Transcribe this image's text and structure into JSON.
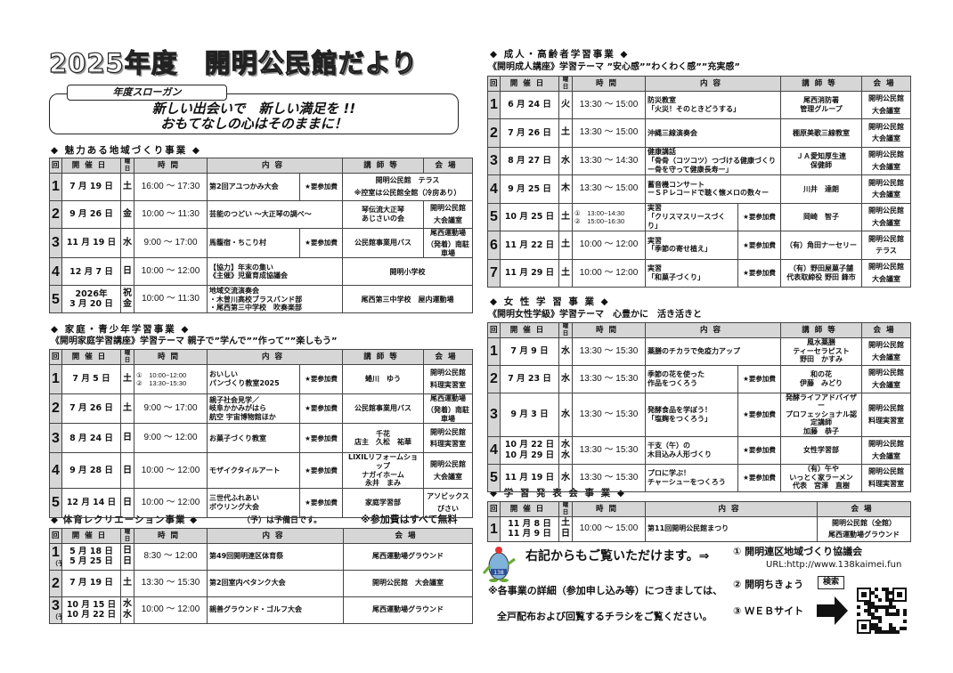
{
  "header": {
    "title": "2025年度　開明公民館だより",
    "slogan_label": "年度スローガン",
    "slogan_lines": [
      "新しい出会いで　新しい満足を !!",
      "おもてなしの心はそのままに！"
    ]
  },
  "headers": {
    "no": "回",
    "date": "開催日",
    "day": "曜日",
    "time": "時間",
    "content": "内容",
    "lecturer": "講師等",
    "venue": "会場"
  },
  "fee_label": "★要参加費",
  "sections": {
    "miryoku": {
      "title": "◆ 魅力ある地域づくり事業 ◆",
      "rows": [
        {
          "no": "1",
          "date": "7 月 19 日",
          "day": "土",
          "time": "16:00 ～ 17:30",
          "content": "第2回アユつかみ大会",
          "fee": "★要参加費",
          "venue": [
            "開明公民館　テラス",
            "※控室は公民館全館（冷房あり）"
          ]
        },
        {
          "no": "2",
          "date": "9 月 26 日",
          "day": "金",
          "time": "10:00 ～ 11:30",
          "content": "芸能のつどい ～大正琴の調べ～",
          "lecturer": [
            "琴伝流大正琴",
            "あじさいの会"
          ],
          "venue": [
            "開明公民館",
            "大会議室"
          ]
        },
        {
          "no": "3",
          "date": "11 月 19 日",
          "day": "水",
          "time": "9:00 ～ 17:00",
          "content": "馬籠宿・ちこり村",
          "fee": "★要参加費",
          "lecturer": "公民館事業用バス",
          "venue": [
            "尾西運動場",
            "（発着）南駐車場"
          ]
        },
        {
          "no": "4",
          "date": "12 月 7 日",
          "day": "日",
          "time": "10:00 ～ 12:00",
          "content": [
            "【協力】年末の集い",
            "《主催》児童育成協議会"
          ],
          "venue": "開明小学校"
        },
        {
          "no": "5",
          "date": [
            "2026年",
            "3 月 20 日"
          ],
          "day": [
            "祝",
            "金"
          ],
          "time": "10:00 ～ 11:30",
          "content": [
            "地域交流演奏会",
            "・木曽川高校ブラスバンド部",
            "・尾西第三中学校　吹奏楽部"
          ],
          "venue": "尾西第三中学校　屋内運動場"
        }
      ]
    },
    "katei": {
      "title": "◆ 家庭・青少年学習事業 ◆",
      "theme": "《開明家庭学習講座》学習テーマ 親子で”学んで””作って””楽しもう”",
      "rows": [
        {
          "no": "1",
          "date": "7 月 5 日",
          "day": "土",
          "time": [
            "①　10:00~12:00",
            "②　13:30~15:30"
          ],
          "content": [
            "おいしい",
            "パンづくり教室2025"
          ],
          "fee": "★要参加費",
          "lecturer": "蜷川　ゆう",
          "venue": [
            "開明公民館",
            "料理実習室"
          ]
        },
        {
          "no": "2",
          "date": "7 月 26 日",
          "day": "土",
          "time": "9:00 ～ 17:00",
          "content": [
            "親子社会見学／",
            "岐阜かかみがはら",
            "航空 宇宙博物館ほか"
          ],
          "fee": "★要参加費",
          "lecturer": "公民館事業用バス",
          "venue": [
            "尾西運動場",
            "（発着）南駐車場"
          ]
        },
        {
          "no": "3",
          "date": "8 月 24 日",
          "day": "日",
          "time": "9:00 ～ 12:00",
          "content": "お菓子づくり教室",
          "fee": "★要参加費",
          "lecturer": [
            "千花",
            "店主　久松　祐華"
          ],
          "venue": [
            "開明公民館",
            "料理実習室"
          ]
        },
        {
          "no": "4",
          "date": "9 月 28 日",
          "day": "日",
          "time": "10:00 ～ 12:00",
          "content": "モザイクタイルアート",
          "fee": "★要参加費",
          "lecturer": [
            "LIXILリフォームショップ",
            "ナガイホーム",
            "永井　まみ"
          ],
          "venue": [
            "開明公民館",
            "大会議室"
          ]
        },
        {
          "no": "5",
          "date": "12 月 14 日",
          "day": "日",
          "time": "10:00 ～ 12:00",
          "content": [
            "三世代ふれあい",
            "ボウリング大会"
          ],
          "fee": "★要参加費",
          "lecturer": "家庭学習部",
          "venue": [
            "アソビックス",
            "びさい"
          ]
        }
      ]
    },
    "taiiku": {
      "title": "◆ 体育レクリエーション事業 ◆",
      "note": "（予）は予備日です。",
      "free_note": "※参加費はすべて無料",
      "rows": [
        {
          "no": [
            "1",
            "（予）"
          ],
          "date": [
            "5 月 18 日",
            "5 月 25 日"
          ],
          "day": [
            "日",
            "日"
          ],
          "time": "8:30 ～ 12:00",
          "content": "第49回開明連区体育祭",
          "venue": "尾西運動場グラウンド"
        },
        {
          "no": "2",
          "date": "7 月 19 日",
          "day": "土",
          "time": "13:30 ～ 15:30",
          "content": "第2回室内ペタンク大会",
          "venue": "開明公民館　大会議室"
        },
        {
          "no": [
            "3",
            "（予）"
          ],
          "date": [
            "10 月 15 日",
            "10 月 22 日"
          ],
          "day": [
            "水",
            "水"
          ],
          "time": "10:00 ～ 12:00",
          "content": "親善グラウンド・ゴルフ大会",
          "venue": "尾西運動場グラウンド"
        }
      ]
    },
    "seijin": {
      "title": "◆ 成人・高齢者学習事業 ◆",
      "theme": "《開明成人講座》学習テーマ ”安心感””わくわく感””充実感”",
      "rows": [
        {
          "no": "1",
          "date": "6 月 24 日",
          "day": "火",
          "time": "13:30 ～ 15:00",
          "content": [
            "防災教室",
            "「火災！そのときどうする」"
          ],
          "lecturer": [
            "尾西消防署",
            "管理グループ"
          ],
          "venue": [
            "開明公民館",
            "大会議室"
          ]
        },
        {
          "no": "2",
          "date": "7 月 26 日",
          "day": "土",
          "time": "13:30 ～ 15:00",
          "content": "沖縄三線演奏会",
          "lecturer": "棚原美歌三線教室",
          "venue": [
            "開明公民館",
            "大会議室"
          ]
        },
        {
          "no": "3",
          "date": "8 月 27 日",
          "day": "水",
          "time": "13:30 ～ 14:30",
          "content": [
            "健康講話",
            "「骨骨（コツコツ）つづける健康づくり",
            "ー骨を守って健康長寿ー」"
          ],
          "lecturer": [
            "ＪＡ愛知厚生連",
            "保健師"
          ],
          "venue": [
            "開明公民館",
            "大会議室"
          ]
        },
        {
          "no": "4",
          "date": "9 月 25 日",
          "day": "木",
          "time": "13:30 ～ 15:00",
          "content": [
            "蓄音機コンサート",
            "ーＳＰレコードで聴く懐メロの数々ー"
          ],
          "lecturer": "川井　達朗",
          "venue": [
            "開明公民館",
            "大会議室"
          ]
        },
        {
          "no": "5",
          "date": "10 月 25 日",
          "day": "土",
          "time": [
            "①　13:00~14:30",
            "②　15:00~16:30"
          ],
          "content": [
            "実習",
            "「クリスマスリースづくり」"
          ],
          "fee": "★要参加費",
          "lecturer": "岡崎　智子",
          "venue": [
            "開明公民館",
            "大会議室"
          ]
        },
        {
          "no": "6",
          "date": "11 月 22 日",
          "day": "土",
          "time": "10:00 ～ 12:00",
          "content": [
            "実習",
            "「季節の寄せ植え」"
          ],
          "fee": "★要参加費",
          "lecturer": "（有）角田ナーセリー",
          "venue": [
            "開明公民館",
            "テラス"
          ]
        },
        {
          "no": "7",
          "date": "11 月 29 日",
          "day": "土",
          "time": "10:00 ～ 12:00",
          "content": [
            "実習",
            "「和菓子づくり」"
          ],
          "fee": "★要参加費",
          "lecturer": [
            "（有）野田屋菓子舗",
            "代表取締役 野田 鋒市"
          ],
          "venue": [
            "開明公民館",
            "大会議室"
          ]
        }
      ]
    },
    "josei": {
      "title": "◆ 女 性 学 習 事 業 ◆",
      "theme": "《開明女性学級》学習テーマ　心豊かに　活き活きと",
      "rows": [
        {
          "no": "1",
          "date": "7 月 9 日",
          "day": "水",
          "time": "13:30 ～ 15:30",
          "content": "薬膳のチカラで免疫力アップ",
          "lecturer": [
            "風水薬膳",
            "ティーセラピスト",
            "野田　かすみ"
          ],
          "venue": [
            "開明公民館",
            "大会議室"
          ]
        },
        {
          "no": "2",
          "date": "7 月 23 日",
          "day": "水",
          "time": "13:30 ～ 15:30",
          "content": [
            "季節の花を使った",
            "作品をつくろう"
          ],
          "fee": "★要参加費",
          "lecturer": [
            "和の花",
            "伊藤　みどり"
          ],
          "venue": [
            "開明公民館",
            "大会議室"
          ]
        },
        {
          "no": "3",
          "date": "9 月 3 日",
          "day": "水",
          "time": "13:30 ～ 15:30",
          "content": [
            "発酵食品を学ぼう！",
            "「塩麹をつくろう」"
          ],
          "fee": "★要参加費",
          "lecturer": [
            "発酵ライフアドバイザー",
            "プロフェッショナル認定講師",
            "加藤　恭子"
          ],
          "venue": [
            "開明公民館",
            "料理実習室"
          ]
        },
        {
          "no": "4",
          "date": [
            "10 月 22 日",
            "10 月 29 日"
          ],
          "day": [
            "水",
            "水"
          ],
          "time": "13:30 ～ 15:30",
          "content": [
            "干支（午）の",
            "木目込み人形づくり"
          ],
          "fee": "★要参加費",
          "lecturer": "女性学習部",
          "venue": [
            "開明公民館",
            "大会議室"
          ]
        },
        {
          "no": "5",
          "date": "11 月 19 日",
          "day": "水",
          "time": "13:30 ～ 15:30",
          "content": [
            "プロに学ぶ！",
            "チャーシューをつくろう"
          ],
          "fee": "★要参加費",
          "lecturer": [
            "（有）午や",
            "いっとく家ラーメン",
            "代表　宮澤　直樹"
          ],
          "venue": [
            "開明公民館",
            "料理実習室"
          ]
        }
      ]
    },
    "happyo": {
      "title": "◆ 学 習 発 表 会 事 業 ◆",
      "rows": [
        {
          "no": "1",
          "date": [
            "11 月 8 日",
            "11 月 9 日"
          ],
          "day": [
            "土",
            "日"
          ],
          "time": "10:00 ～ 15:00",
          "content": "第11回開明公民館まつり",
          "venue": [
            "開明公民館（全館）",
            "尾西運動場グラウンド"
          ]
        }
      ]
    }
  },
  "footer": {
    "see_right": "右記からもご覧いただけます。⇒",
    "details_line1": "※各事業の詳細（参加申し込み等）につきましては、",
    "details_line2": "全戸配布および回覧するチラシをご覧ください。",
    "mascot_badge": "138",
    "link1_label": "① 開明連区地域づくり協議会",
    "link1_url": "URL:http://www.138kaimei.fun",
    "link2_label": "② 開明ちきょう",
    "search_button": "検索",
    "link3_label": "③ ＷＥＢサイト"
  }
}
